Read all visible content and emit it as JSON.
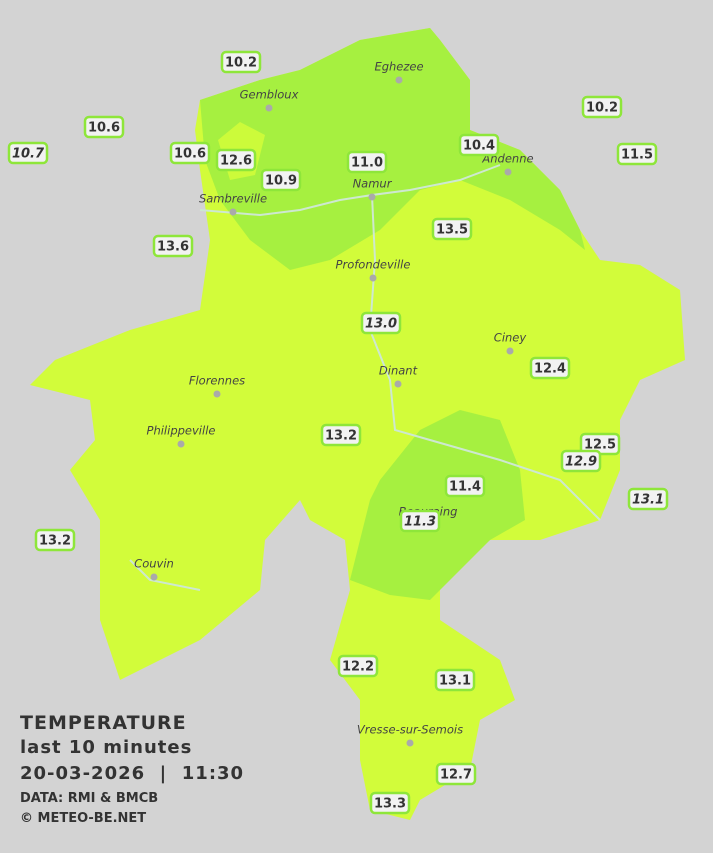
{
  "cities": [
    "Eghezee",
    "Gembloux",
    "Andenne",
    "Namur",
    "Sambreville",
    "Profondeville",
    "Ciney",
    "Dinant",
    "Florennes",
    "Philippeville",
    "Beauraing",
    "Couvin",
    "Vresse-sur-Semois"
  ],
  "stations": [
    {
      "reading": "10.2",
      "italic": false
    },
    {
      "reading": "10.6",
      "italic": false
    },
    {
      "reading": "10.7",
      "italic": true
    },
    {
      "reading": "10.6",
      "italic": false
    },
    {
      "reading": "12.6",
      "italic": false
    },
    {
      "reading": "10.9",
      "italic": false
    },
    {
      "reading": "11.0",
      "italic": false
    },
    {
      "reading": "10.4",
      "italic": false
    },
    {
      "reading": "10.2",
      "italic": false
    },
    {
      "reading": "11.5",
      "italic": false
    },
    {
      "reading": "13.6",
      "italic": false
    },
    {
      "reading": "13.5",
      "italic": false
    },
    {
      "reading": "13.0",
      "italic": true
    },
    {
      "reading": "12.4",
      "italic": false
    },
    {
      "reading": "13.2",
      "italic": false
    },
    {
      "reading": "12.5",
      "italic": false
    },
    {
      "reading": "12.9",
      "italic": true
    },
    {
      "reading": "13.1",
      "italic": true
    },
    {
      "reading": "11.4",
      "italic": false
    },
    {
      "reading": "11.3",
      "italic": true
    },
    {
      "reading": "13.2",
      "italic": false
    },
    {
      "reading": "12.2",
      "italic": false
    },
    {
      "reading": "13.1",
      "italic": false
    },
    {
      "reading": "12.7",
      "italic": false
    },
    {
      "reading": "13.3",
      "italic": false
    }
  ],
  "legend": {
    "title": "TEMPERATURE",
    "subtitle": "last 10 minutes",
    "datetime": "20-03-2026  |  11:30",
    "source": "DATA: RMI & BMCB",
    "credit": "© METEO-BE.NET"
  }
}
